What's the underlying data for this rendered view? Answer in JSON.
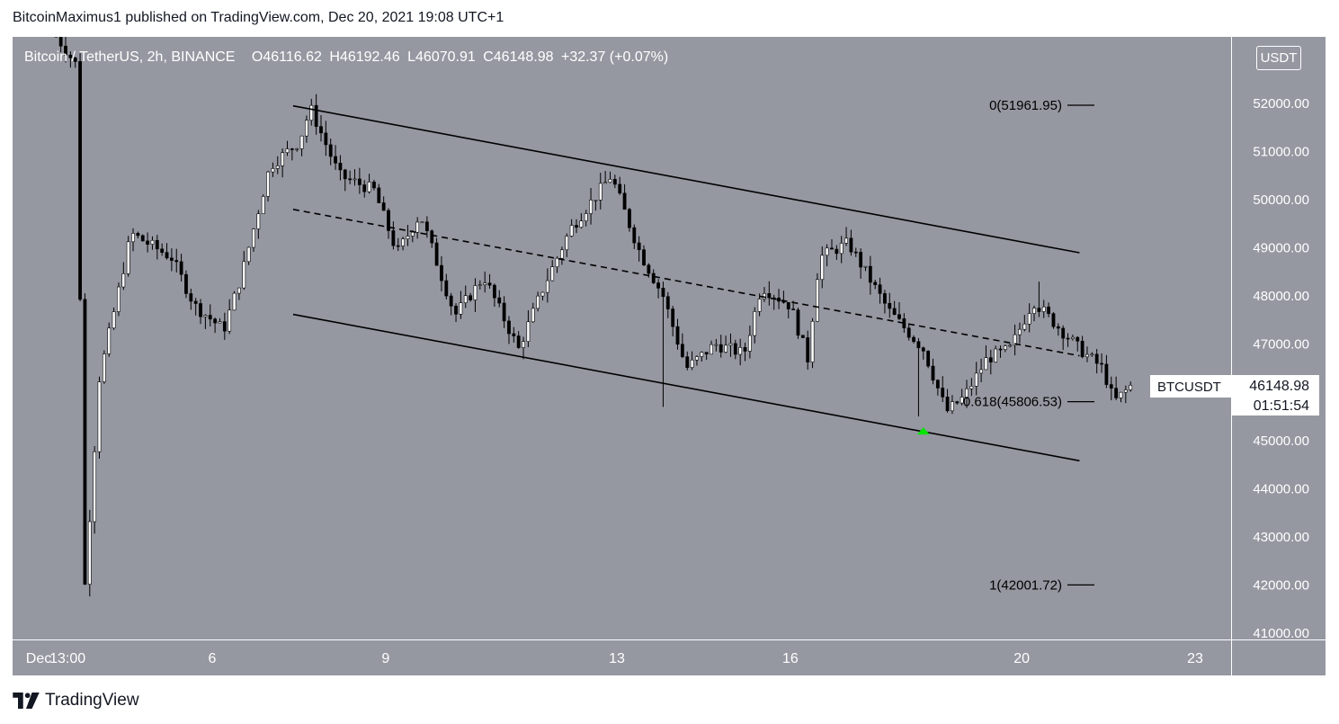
{
  "header": {
    "publisher_line": "BitcoinMaximus1 published on TradingView.com, Dec 20, 2021 19:08 UTC+1"
  },
  "legend": {
    "symbol": "Bitcoin / TetherUS, 2h, BINANCE",
    "o_label": "O",
    "o_value": "46116.62",
    "h_label": "H",
    "h_value": "46192.46",
    "l_label": "L",
    "l_value": "46070.91",
    "c_label": "C",
    "c_value": "46148.98",
    "change": "+32.37 (+0.07%)"
  },
  "currency_badge": "USDT",
  "price_tag": {
    "symbol": "BTCUSDT",
    "price": "46148.98",
    "countdown": "01:51:54"
  },
  "footer": {
    "brand": "TradingView"
  },
  "colors": {
    "background": "#9598a1",
    "candle_up": "#ffffff",
    "candle_down": "#000000",
    "line": "#000000",
    "marker": "#00e600"
  },
  "chart_data": {
    "type": "candlestick",
    "title": "",
    "ylim": [
      40800,
      53000
    ],
    "y_ticks": [
      41000,
      42000,
      43000,
      44000,
      45000,
      46000,
      47000,
      48000,
      49000,
      50000,
      51000,
      52000
    ],
    "y_tick_labels": [
      "41000.00",
      "42000.00",
      "43000.00",
      "44000.00",
      "45000.00",
      "46000.00",
      "47000.00",
      "48000.00",
      "49000.00",
      "50000.00",
      "51000.00",
      "52000.00"
    ],
    "x_ticks": [
      {
        "label": "Dec",
        "day": 3.0
      },
      {
        "label": "13:00",
        "day": 3.5
      },
      {
        "label": "6",
        "day": 6.0
      },
      {
        "label": "9",
        "day": 9.0
      },
      {
        "label": "13",
        "day": 13.0
      },
      {
        "label": "16",
        "day": 16.0
      },
      {
        "label": "20",
        "day": 20.0
      },
      {
        "label": "23",
        "day": 23.0
      }
    ],
    "xlim_days": [
      2.8,
      24.0
    ],
    "price_key_points": [
      {
        "day": 3.3,
        "price": 53400
      },
      {
        "day": 3.65,
        "price": 52800
      },
      {
        "day": 3.8,
        "price": 42000
      },
      {
        "day": 4.05,
        "price": 46300
      },
      {
        "day": 4.6,
        "price": 49300
      },
      {
        "day": 5.3,
        "price": 48800
      },
      {
        "day": 5.7,
        "price": 47800
      },
      {
        "day": 6.2,
        "price": 47300
      },
      {
        "day": 6.5,
        "price": 48400
      },
      {
        "day": 7.0,
        "price": 50700
      },
      {
        "day": 7.5,
        "price": 51200
      },
      {
        "day": 7.7,
        "price": 51900
      },
      {
        "day": 8.2,
        "price": 50500
      },
      {
        "day": 8.8,
        "price": 50200
      },
      {
        "day": 9.2,
        "price": 48900
      },
      {
        "day": 9.6,
        "price": 49700
      },
      {
        "day": 10.2,
        "price": 47600
      },
      {
        "day": 10.7,
        "price": 48400
      },
      {
        "day": 11.3,
        "price": 46900
      },
      {
        "day": 11.7,
        "price": 48100
      },
      {
        "day": 12.2,
        "price": 49400
      },
      {
        "day": 12.9,
        "price": 50500
      },
      {
        "day": 13.4,
        "price": 48900
      },
      {
        "day": 13.8,
        "price": 48000
      },
      {
        "day": 14.2,
        "price": 46500
      },
      {
        "day": 14.7,
        "price": 47000
      },
      {
        "day": 15.2,
        "price": 46800
      },
      {
        "day": 15.5,
        "price": 48200
      },
      {
        "day": 16.0,
        "price": 47800
      },
      {
        "day": 16.3,
        "price": 46700
      },
      {
        "day": 16.5,
        "price": 48800
      },
      {
        "day": 17.0,
        "price": 49100
      },
      {
        "day": 17.4,
        "price": 48300
      },
      {
        "day": 17.7,
        "price": 47700
      },
      {
        "day": 18.3,
        "price": 46900
      },
      {
        "day": 18.7,
        "price": 45600
      },
      {
        "day": 19.0,
        "price": 45900
      },
      {
        "day": 19.4,
        "price": 46700
      },
      {
        "day": 19.8,
        "price": 46900
      },
      {
        "day": 20.2,
        "price": 47900
      },
      {
        "day": 20.6,
        "price": 47400
      },
      {
        "day": 21.0,
        "price": 46900
      },
      {
        "day": 21.4,
        "price": 46500
      },
      {
        "day": 21.6,
        "price": 45800
      },
      {
        "day": 21.9,
        "price": 46149
      }
    ],
    "channel": {
      "upper": [
        [
          7.4,
          51950
        ],
        [
          21.0,
          48900
        ]
      ],
      "middle": [
        [
          7.4,
          49800
        ],
        [
          21.0,
          46760
        ]
      ],
      "lower": [
        [
          7.4,
          47620
        ],
        [
          21.0,
          44580
        ]
      ]
    },
    "fibonacci": [
      {
        "label": "0(51961.95)",
        "price": 51961.95
      },
      {
        "label": "0.618(45806.53)",
        "price": 45806.53
      },
      {
        "label": "1(42001.72)",
        "price": 42001.72
      }
    ],
    "marker": {
      "type": "arrow-up",
      "day": 18.3,
      "price": 45200
    }
  }
}
